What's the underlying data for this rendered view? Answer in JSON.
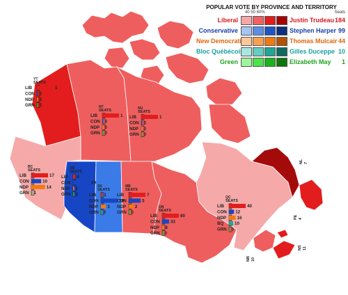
{
  "legend": {
    "title": "POPULAR VOTE BY PROVINCE AND TERRITORY",
    "range_label": "40 50 60%",
    "seats_header": "Seats",
    "parties": [
      {
        "name": "Liberal",
        "leader": "Justin Trudeau",
        "seats": "184",
        "name_color": "#d71920",
        "leader_color": "#d71920",
        "swatches": [
          "#f4a8a8",
          "#f06262",
          "#e31c1c",
          "#a80000"
        ]
      },
      {
        "name": "Conservative",
        "leader": "Stephen Harper",
        "seats": "99",
        "name_color": "#1a3fa8",
        "leader_color": "#1a3fa8",
        "swatches": [
          "#a7c4f2",
          "#5b8ee6",
          "#1d55c4",
          "#0c2f80"
        ]
      },
      {
        "name": "New Democratic",
        "leader": "Thomas Mulcair",
        "seats": "44",
        "name_color": "#e0660c",
        "leader_color": "#e0660c",
        "swatches": [
          "#fcc79a",
          "#f9a050",
          "#f07a10",
          "#b45200"
        ]
      },
      {
        "name": "Bloc Québécois",
        "leader": "Gilles Duceppe",
        "seats": "10",
        "name_color": "#1a9fa0",
        "leader_color": "#1a9fa0",
        "swatches": [
          "#aae7e0",
          "#62cfc2",
          "#1fa696",
          "#0d6b60"
        ]
      },
      {
        "name": "Green",
        "leader": "Elizabeth May",
        "seats": "1",
        "name_color": "#1fa31f",
        "leader_color": "#1fa31f",
        "swatches": [
          "#9ef59e",
          "#4ae44a",
          "#1cb41c",
          "#0c780c"
        ]
      }
    ]
  },
  "colors": {
    "lib_light": "#f6a9a9",
    "lib_mid": "#ef5e5e",
    "lib_strong": "#e31d1d",
    "lib_dark": "#a50a0a",
    "con_mid": "#3a7be8",
    "con_dark": "#1746c4",
    "con_bar": "#1746c4",
    "ndp_bar": "#f07a10",
    "bq_bar": "#1fa696",
    "grn_bar": "#1cb41c",
    "water": "#ffffff",
    "border": "#ffffff"
  },
  "provinces": [
    {
      "name": "YT",
      "seat_header": "SEATS",
      "rows": [
        {
          "party": "LIB",
          "seats": 1
        },
        {
          "party": "CON",
          "seats": 0
        },
        {
          "party": "NDP",
          "seats": 0
        },
        {
          "party": "GRN",
          "seats": 0
        }
      ]
    },
    {
      "name": "NT",
      "seat_header": "SEATS",
      "rows": [
        {
          "party": "LIB",
          "seats": 1
        },
        {
          "party": "CON",
          "seats": 0
        },
        {
          "party": "NDP",
          "seats": 0
        },
        {
          "party": "GRN",
          "seats": 0
        }
      ]
    },
    {
      "name": "NU",
      "seat_header": "SEATS",
      "rows": [
        {
          "party": "LIB",
          "seats": 1
        },
        {
          "party": "CON",
          "seats": 0
        },
        {
          "party": "NDP",
          "seats": 0
        },
        {
          "party": "GRN",
          "seats": 0
        }
      ]
    },
    {
      "name": "BC",
      "seat_header": "SEATS",
      "rows": [
        {
          "party": "LIB",
          "seats": 17
        },
        {
          "party": "CON",
          "seats": 10
        },
        {
          "party": "NDP",
          "seats": 14
        },
        {
          "party": "GRN",
          "seats": 1
        }
      ]
    },
    {
      "name": "AB",
      "seat_header": "SEATS",
      "rows": [
        {
          "party": "LIB",
          "seats": 4
        },
        {
          "party": "CON",
          "seats": 29
        },
        {
          "party": "NDP",
          "seats": 1
        },
        {
          "party": "GRN",
          "seats": 0
        }
      ]
    },
    {
      "name": "SK",
      "seat_header": "SEATS",
      "rows": [
        {
          "party": "LIB",
          "seats": 1
        },
        {
          "party": "CON",
          "seats": 10
        },
        {
          "party": "NDP",
          "seats": 3
        },
        {
          "party": "GRN",
          "seats": 0
        }
      ]
    },
    {
      "name": "MB",
      "seat_header": "SEATS",
      "rows": [
        {
          "party": "LIB",
          "seats": 7
        },
        {
          "party": "CON",
          "seats": 5
        },
        {
          "party": "NDP",
          "seats": 2
        },
        {
          "party": "GRN",
          "seats": 0
        }
      ]
    },
    {
      "name": "ON",
      "seat_header": "SEATS",
      "rows": [
        {
          "party": "LIB",
          "seats": 80
        },
        {
          "party": "CON",
          "seats": 33
        },
        {
          "party": "NDP",
          "seats": 8
        },
        {
          "party": "GRN",
          "seats": 0
        }
      ]
    },
    {
      "name": "QC",
      "seat_header": "SEATS",
      "rows": [
        {
          "party": "LIB",
          "seats": 40
        },
        {
          "party": "CON",
          "seats": 12
        },
        {
          "party": "NDP",
          "seats": 16
        },
        {
          "party": "BQ",
          "seats": 10
        },
        {
          "party": "GRN",
          "seats": 0
        }
      ]
    }
  ],
  "atlantic": [
    {
      "name": "NL",
      "seats": "7"
    },
    {
      "name": "PE",
      "seats": "4"
    },
    {
      "name": "NS",
      "seats": "11"
    },
    {
      "name": "NB",
      "seats": "10"
    }
  ]
}
